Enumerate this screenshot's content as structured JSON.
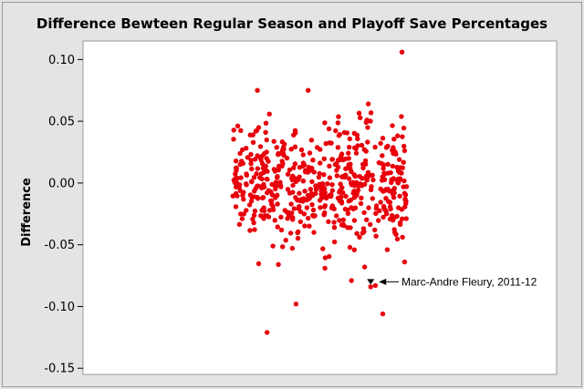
{
  "chart_data": {
    "type": "scatter",
    "title": "Difference Bewteen Regular Season and Playoff Save Percentages",
    "xlabel": "",
    "ylabel": "Difference",
    "ylim": [
      -0.155,
      0.115
    ],
    "y_ticks": [
      "0.10",
      "0.05",
      "0.00",
      "-0.05",
      "-0.10",
      "-0.15"
    ],
    "y_tick_values": [
      0.1,
      0.05,
      0.0,
      -0.05,
      -0.1,
      -0.15
    ],
    "x_range": [
      0,
      100
    ],
    "grid": false,
    "point_color": "#e8000b",
    "highlight": {
      "label": "Marc-Andre Fleury, 2011-12",
      "x": 53.2,
      "y": -0.08,
      "marker": "triangle-down",
      "color": "#000000"
    },
    "outliers": [
      {
        "x": 13.8,
        "y": -0.121
      },
      {
        "x": 24.8,
        "y": -0.098
      },
      {
        "x": 10.1,
        "y": 0.075
      },
      {
        "x": 29.4,
        "y": 0.075
      },
      {
        "x": 52.3,
        "y": 0.064
      },
      {
        "x": 65.1,
        "y": 0.106
      },
      {
        "x": 57.8,
        "y": -0.106
      },
      {
        "x": 53.2,
        "y": -0.084
      },
      {
        "x": 55.0,
        "y": -0.083
      },
      {
        "x": 45.9,
        "y": -0.079
      },
      {
        "x": 35.8,
        "y": -0.069
      },
      {
        "x": 66.1,
        "y": -0.064
      }
    ],
    "cluster": {
      "x_min": 0.5,
      "x_max": 67.0,
      "y_center": 0.0,
      "y_sd": 0.025,
      "count": 560
    }
  }
}
